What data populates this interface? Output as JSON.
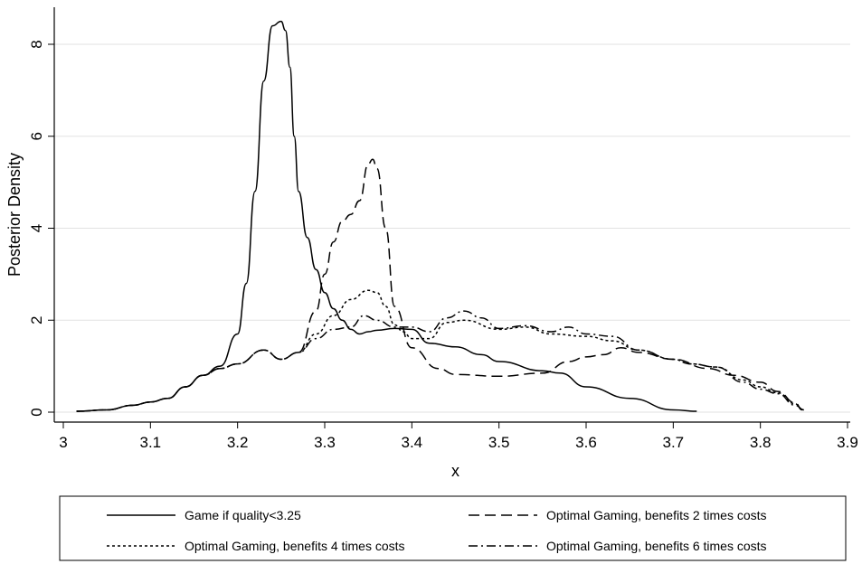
{
  "chart_data": {
    "type": "line",
    "title": "",
    "xlabel": "x",
    "ylabel": "Posterior Density",
    "xlim": [
      3.0,
      3.9
    ],
    "ylim": [
      0,
      8.6
    ],
    "x_ticks": [
      "3",
      "3.1",
      "3.2",
      "3.3",
      "3.4",
      "3.5",
      "3.6",
      "3.7",
      "3.8",
      "3.9"
    ],
    "y_ticks": [
      "0",
      "2",
      "4",
      "6",
      "8"
    ],
    "grid": true,
    "legend_position": "bottom",
    "series": [
      {
        "name": "Game if quality<3.25",
        "dash": "solid",
        "x": [
          3.015,
          3.05,
          3.08,
          3.1,
          3.12,
          3.14,
          3.16,
          3.18,
          3.2,
          3.21,
          3.22,
          3.23,
          3.24,
          3.25,
          3.255,
          3.26,
          3.265,
          3.27,
          3.28,
          3.29,
          3.3,
          3.31,
          3.32,
          3.33,
          3.34,
          3.35,
          3.36,
          3.38,
          3.4,
          3.42,
          3.45,
          3.48,
          3.5,
          3.55,
          3.57,
          3.6,
          3.65,
          3.7,
          3.727
        ],
        "y": [
          0.02,
          0.05,
          0.15,
          0.22,
          0.3,
          0.55,
          0.8,
          1.0,
          1.7,
          2.8,
          4.8,
          7.2,
          8.4,
          8.5,
          8.3,
          7.5,
          6.0,
          4.8,
          3.8,
          3.1,
          2.6,
          2.25,
          2.0,
          1.8,
          1.7,
          1.75,
          1.78,
          1.82,
          1.8,
          1.5,
          1.42,
          1.25,
          1.1,
          0.9,
          0.85,
          0.55,
          0.3,
          0.05,
          0.02
        ]
      },
      {
        "name": "Optimal Gaming, benefits 2 times costs",
        "dash": "long-dash",
        "x": [
          3.015,
          3.05,
          3.08,
          3.1,
          3.12,
          3.14,
          3.16,
          3.18,
          3.2,
          3.23,
          3.25,
          3.27,
          3.29,
          3.3,
          3.31,
          3.32,
          3.33,
          3.34,
          3.35,
          3.355,
          3.36,
          3.37,
          3.38,
          3.4,
          3.43,
          3.45,
          3.5,
          3.55,
          3.58,
          3.6,
          3.62,
          3.64,
          3.66,
          3.7,
          3.74,
          3.77,
          3.8,
          3.82,
          3.84,
          3.848
        ],
        "y": [
          0.02,
          0.05,
          0.15,
          0.22,
          0.3,
          0.55,
          0.8,
          0.95,
          1.05,
          1.35,
          1.15,
          1.3,
          2.2,
          3.0,
          3.7,
          4.15,
          4.3,
          4.6,
          5.4,
          5.5,
          5.3,
          4.0,
          2.3,
          1.4,
          0.95,
          0.82,
          0.78,
          0.85,
          1.1,
          1.2,
          1.25,
          1.4,
          1.3,
          1.15,
          0.95,
          0.8,
          0.65,
          0.45,
          0.2,
          0.05
        ]
      },
      {
        "name": "Optimal Gaming, benefits 4 times costs",
        "dash": "short-dash",
        "x": [
          3.015,
          3.05,
          3.08,
          3.1,
          3.12,
          3.14,
          3.16,
          3.18,
          3.2,
          3.23,
          3.25,
          3.27,
          3.29,
          3.31,
          3.33,
          3.35,
          3.36,
          3.37,
          3.38,
          3.39,
          3.4,
          3.42,
          3.44,
          3.46,
          3.5,
          3.53,
          3.56,
          3.6,
          3.63,
          3.66,
          3.7,
          3.72,
          3.75,
          3.78,
          3.8,
          3.82,
          3.84,
          3.848
        ],
        "y": [
          0.02,
          0.05,
          0.15,
          0.22,
          0.3,
          0.55,
          0.8,
          0.95,
          1.05,
          1.35,
          1.15,
          1.3,
          1.7,
          2.1,
          2.45,
          2.65,
          2.6,
          2.3,
          1.9,
          1.75,
          1.6,
          1.6,
          1.95,
          2.0,
          1.8,
          1.85,
          1.7,
          1.65,
          1.55,
          1.35,
          1.15,
          1.05,
          0.98,
          0.7,
          0.55,
          0.42,
          0.18,
          0.05
        ]
      },
      {
        "name": "Optimal Gaming, benefits 6 times costs",
        "dash": "dash-dot",
        "x": [
          3.015,
          3.05,
          3.08,
          3.1,
          3.12,
          3.14,
          3.16,
          3.18,
          3.2,
          3.23,
          3.25,
          3.27,
          3.29,
          3.31,
          3.33,
          3.345,
          3.36,
          3.38,
          3.4,
          3.42,
          3.44,
          3.46,
          3.48,
          3.5,
          3.53,
          3.56,
          3.58,
          3.6,
          3.63,
          3.66,
          3.7,
          3.72,
          3.75,
          3.78,
          3.8,
          3.82,
          3.84,
          3.85
        ],
        "y": [
          0.02,
          0.05,
          0.15,
          0.22,
          0.3,
          0.55,
          0.8,
          0.95,
          1.05,
          1.35,
          1.15,
          1.3,
          1.6,
          1.8,
          1.85,
          2.1,
          2.0,
          1.85,
          1.85,
          1.75,
          2.05,
          2.2,
          2.05,
          1.82,
          1.88,
          1.75,
          1.85,
          1.7,
          1.65,
          1.35,
          1.15,
          1.05,
          0.98,
          0.65,
          0.5,
          0.4,
          0.15,
          0.05
        ]
      }
    ]
  }
}
